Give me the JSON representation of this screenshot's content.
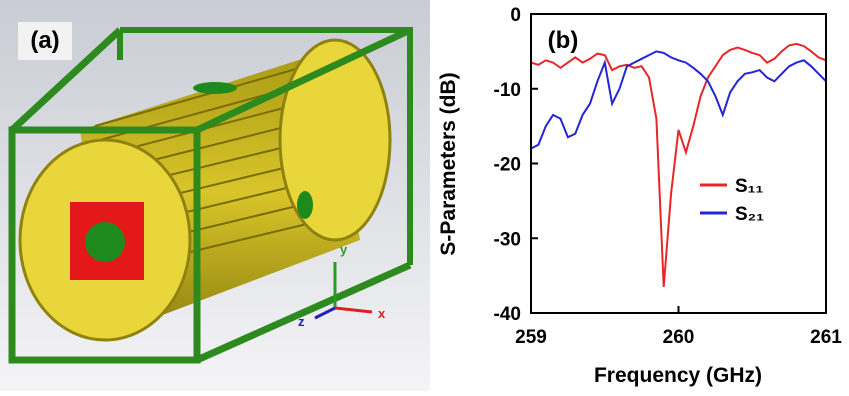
{
  "panel_a": {
    "label": "(a)",
    "axis_labels": [
      "y",
      "z",
      "x"
    ]
  },
  "chart_data": {
    "type": "line",
    "panel_label": "(b)",
    "xlabel": "Frequency (GHz)",
    "ylabel": "S-Parameters (dB)",
    "xlim": [
      259,
      261
    ],
    "xticks": [
      259,
      260,
      261
    ],
    "ylim": [
      -40,
      0
    ],
    "yticks": [
      -40,
      -30,
      -20,
      -10,
      0
    ],
    "x": [
      259,
      259.05,
      259.1,
      259.15,
      259.2,
      259.25,
      259.3,
      259.35,
      259.4,
      259.45,
      259.5,
      259.55,
      259.6,
      259.65,
      259.7,
      259.75,
      259.8,
      259.85,
      259.9,
      259.95,
      260,
      260.05,
      260.1,
      260.15,
      260.2,
      260.25,
      260.3,
      260.35,
      260.4,
      260.45,
      260.5,
      260.55,
      260.6,
      260.65,
      260.7,
      260.75,
      260.8,
      260.85,
      260.9,
      260.95,
      261
    ],
    "series": [
      {
        "name": "S₁₁",
        "color": "#e8262a",
        "values": [
          -6.5,
          -6.8,
          -6.2,
          -6.5,
          -7.2,
          -6.5,
          -5.8,
          -6.5,
          -6.0,
          -5.3,
          -5.5,
          -7.5,
          -7.0,
          -6.8,
          -7.2,
          -7.0,
          -8.5,
          -14,
          -36.5,
          -24,
          -15.5,
          -18.5,
          -15,
          -11,
          -8.5,
          -7,
          -5.5,
          -4.8,
          -4.5,
          -4.8,
          -5.2,
          -5.5,
          -6.5,
          -6,
          -5,
          -4.2,
          -4,
          -4.3,
          -5,
          -5.8,
          -6.2
        ]
      },
      {
        "name": "S₂₁",
        "color": "#2424d8",
        "values": [
          -18,
          -17.5,
          -15,
          -13.5,
          -14,
          -16.5,
          -16,
          -13.5,
          -12,
          -9,
          -6.5,
          -12,
          -10,
          -7,
          -6.5,
          -6,
          -5.5,
          -5,
          -5.2,
          -5.8,
          -6.2,
          -6.5,
          -7.2,
          -8,
          -9,
          -11,
          -13.5,
          -10.5,
          -9,
          -8,
          -7.8,
          -7.5,
          -8.5,
          -9,
          -8,
          -7,
          -6.5,
          -6.2,
          -7,
          -8,
          -9
        ]
      }
    ]
  }
}
